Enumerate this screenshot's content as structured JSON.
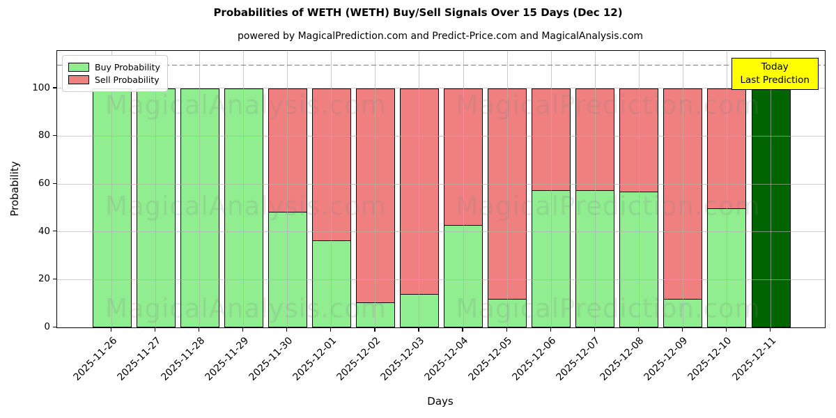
{
  "header": {
    "title": "Probabilities of WETH (WETH) Buy/Sell Signals Over 15 Days (Dec 12)",
    "subtitle": "powered by MagicalPrediction.com and Predict-Price.com and MagicalAnalysis.com"
  },
  "chart_data": {
    "type": "bar",
    "stacked": true,
    "title": "Probabilities of WETH (WETH) Buy/Sell Signals Over 15 Days (Dec 12)",
    "xlabel": "Days",
    "ylabel": "Probability",
    "categories": [
      "2025-11-26",
      "2025-11-27",
      "2025-11-28",
      "2025-11-29",
      "2025-11-30",
      "2025-12-01",
      "2025-12-02",
      "2025-12-03",
      "2025-12-04",
      "2025-12-05",
      "2025-12-06",
      "2025-12-07",
      "2025-12-08",
      "2025-12-09",
      "2025-12-10",
      "2025-12-11"
    ],
    "series": [
      {
        "name": "Buy Probability",
        "color": "#90EE90",
        "values": [
          100,
          100,
          100,
          100,
          48.5,
          36.5,
          10.5,
          14,
          43,
          12,
          57.5,
          57.5,
          57,
          12,
          50,
          100
        ]
      },
      {
        "name": "Sell Probability",
        "color": "#F08080",
        "values": [
          0,
          0,
          0,
          0,
          51.5,
          63.5,
          89.5,
          86,
          57,
          88,
          42.5,
          42.5,
          43,
          88,
          50,
          0
        ]
      }
    ],
    "today_bar": {
      "index": 15,
      "color": "#006400"
    },
    "yticks": [
      0,
      20,
      40,
      60,
      80,
      100
    ],
    "ylim": [
      0,
      115.7
    ],
    "dashed_line_y": 110,
    "grid": true,
    "legend_position": "upper left"
  },
  "annotation": {
    "line1": "Today",
    "line2": "Last Prediction",
    "bg": "#FFFF00"
  },
  "watermarks": {
    "left_text": "MagicalAnalysis.com",
    "right_text": "MagicalPrediction.com",
    "color": "rgba(128,128,128,0.18)"
  },
  "colors": {
    "buy": "#90EE90",
    "sell": "#F08080",
    "today": "#006400",
    "annotation_bg": "#FFFF00",
    "grid": "#b0b0b0",
    "dashed_line": "#7f7f7f"
  }
}
